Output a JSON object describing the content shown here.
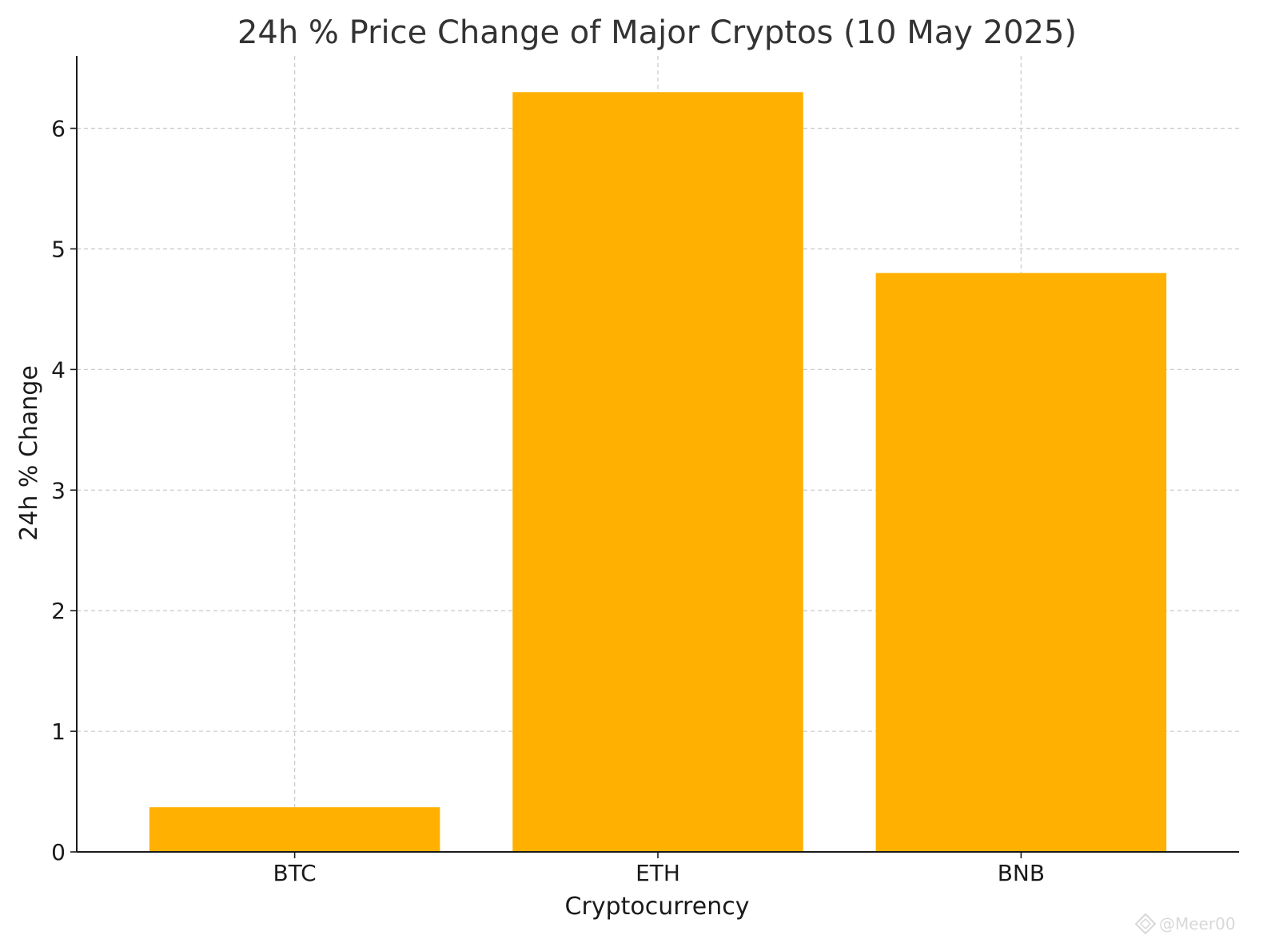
{
  "chart_data": {
    "type": "bar",
    "title": "24h % Price Change of Major Cryptos (10 May 2025)",
    "xlabel": "Cryptocurrency",
    "ylabel": "24h % Change",
    "categories": [
      "BTC",
      "ETH",
      "BNB"
    ],
    "values": [
      0.37,
      6.3,
      4.8
    ],
    "ylim": [
      0,
      6.6
    ],
    "yticks": [
      0,
      1,
      2,
      3,
      4,
      5,
      6
    ],
    "grid": true,
    "bar_color": "#FFB000",
    "grid_color": "#cccccc",
    "axis_color": "#1a1a1a"
  },
  "watermark": {
    "text": "@Meer00",
    "icon": "diamond-logo-icon"
  }
}
